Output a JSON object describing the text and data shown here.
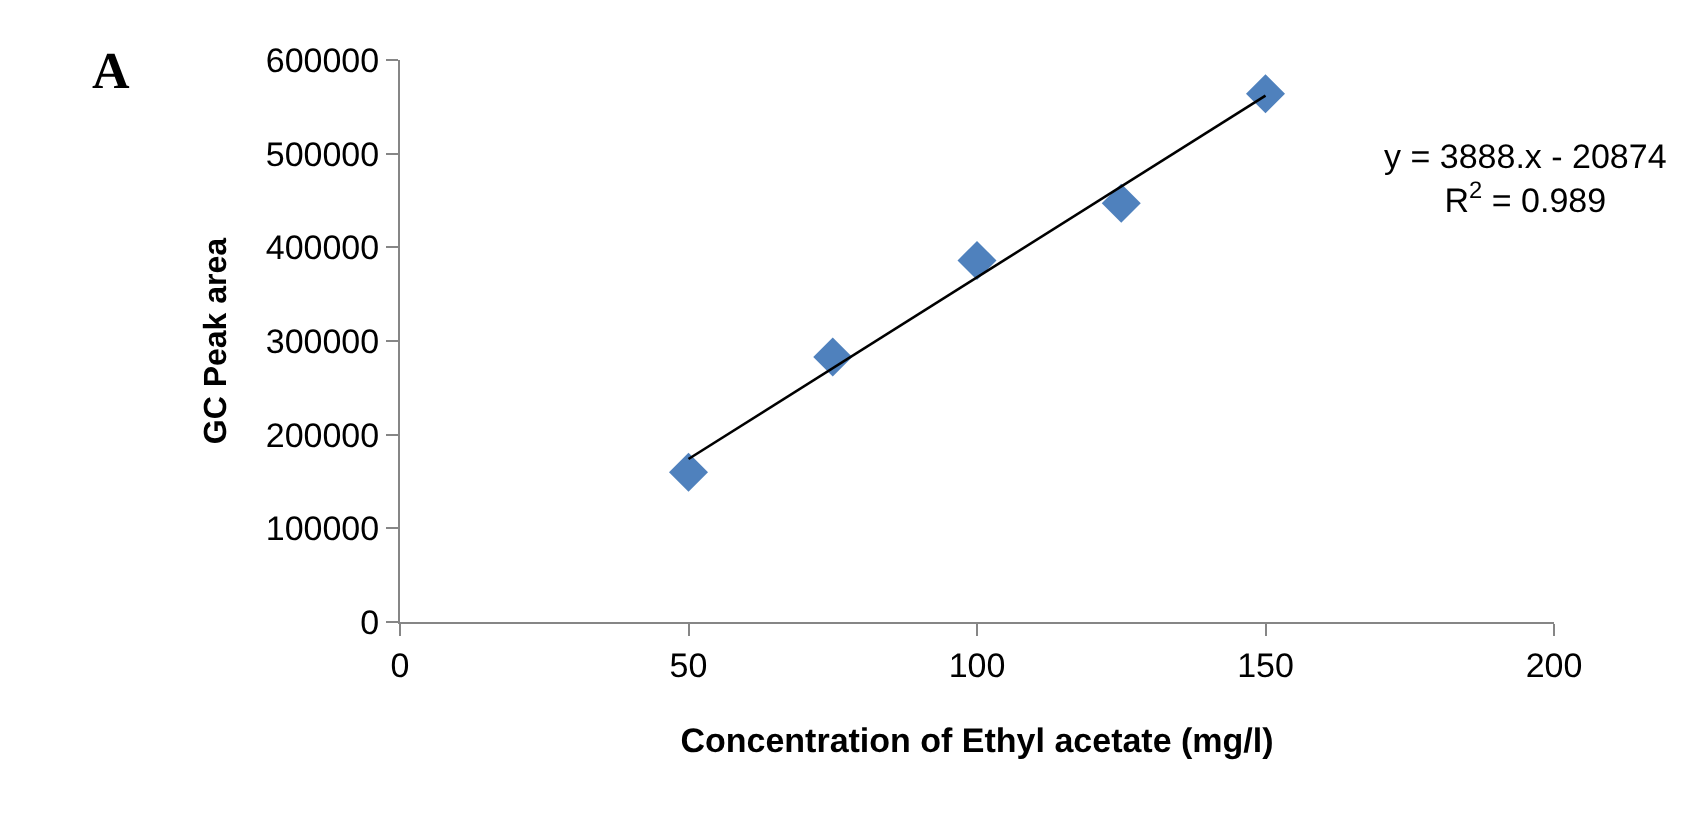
{
  "chart_data": {
    "type": "scatter",
    "xlabel": "Concentration of Ethyl acetate (mg/l)",
    "ylabel": "GC Peak area",
    "annotations": [
      "A",
      "y = 3888.x - 20874\nR$^{2}$ = 0.989"
    ],
    "x": [
      50,
      75,
      100,
      125,
      150
    ],
    "series": [
      {
        "color": "#4f81bd",
        "values": [
          160000,
          283000,
          386000,
          447000,
          564000
        ],
        "marker": "diamond"
      },
      {
        "type": "line",
        "color": "#000000",
        "x": [
          50,
          150
        ],
        "values": [
          174000,
          562000
        ],
        "marker": "none",
        "line_style": "solid"
      }
    ],
    "xlim": [
      0,
      200
    ],
    "xticks": [
      0,
      50,
      100,
      150,
      200
    ],
    "ylim": [
      0,
      600000
    ],
    "yticks": [
      0,
      100000,
      200000,
      300000,
      400000,
      500000,
      600000
    ]
  }
}
